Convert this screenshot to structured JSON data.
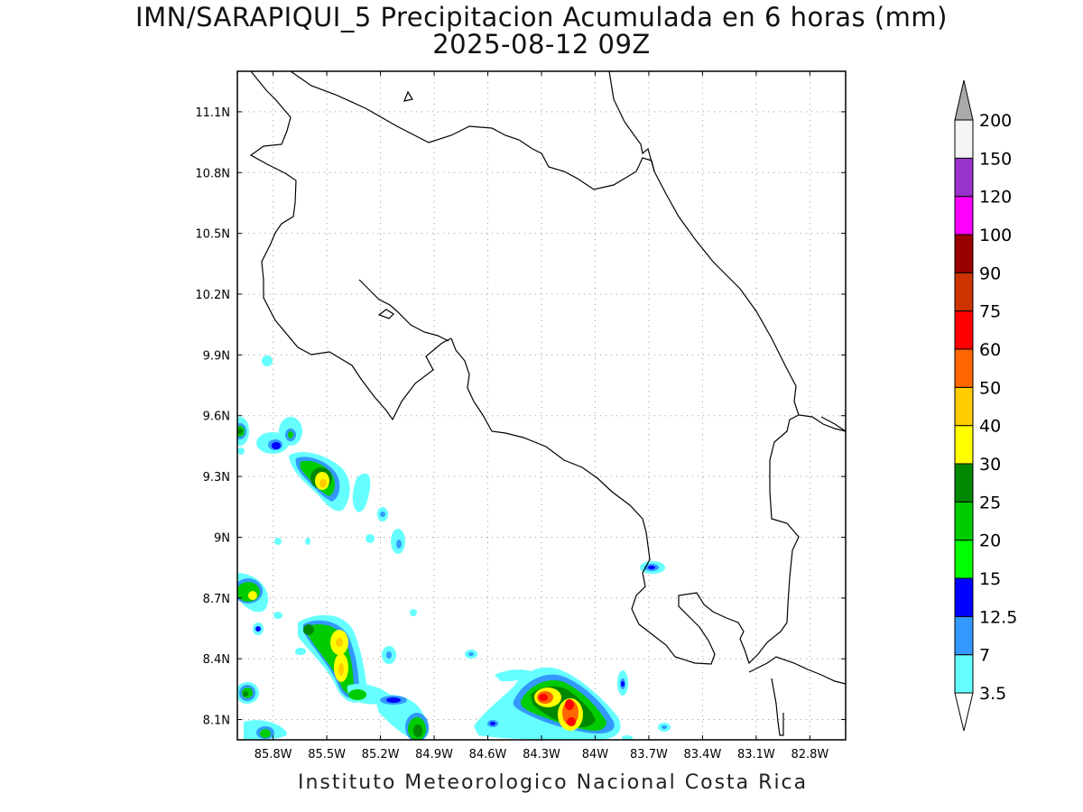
{
  "title_line1": "IMN/SARAPIQUI_5 Precipitacion Acumulada en 6 horas (mm)",
  "title_line2": "2025-08-12 09Z",
  "footer": "Instituto Meteorologico Nacional Costa Rica",
  "map": {
    "lon_range": [
      -86.0,
      -82.6
    ],
    "lat_range": [
      8.0,
      11.3
    ],
    "lon_ticks": [
      {
        "value": -85.8,
        "label": "85.8W"
      },
      {
        "value": -85.5,
        "label": "85.5W"
      },
      {
        "value": -85.2,
        "label": "85.2W"
      },
      {
        "value": -84.9,
        "label": "84.9W"
      },
      {
        "value": -84.6,
        "label": "84.6W"
      },
      {
        "value": -84.3,
        "label": "84.3W"
      },
      {
        "value": -84.0,
        "label": "84W"
      },
      {
        "value": -83.7,
        "label": "83.7W"
      },
      {
        "value": -83.4,
        "label": "83.4W"
      },
      {
        "value": -83.1,
        "label": "83.1W"
      },
      {
        "value": -82.8,
        "label": "82.8W"
      }
    ],
    "lat_ticks": [
      {
        "value": 8.1,
        "label": "8.1N"
      },
      {
        "value": 8.4,
        "label": "8.4N"
      },
      {
        "value": 8.7,
        "label": "8.7N"
      },
      {
        "value": 9.0,
        "label": "9N"
      },
      {
        "value": 9.3,
        "label": "9.3N"
      },
      {
        "value": 9.6,
        "label": "9.6N"
      },
      {
        "value": 9.9,
        "label": "9.9N"
      },
      {
        "value": 10.2,
        "label": "10.2N"
      },
      {
        "value": 10.5,
        "label": "10.5N"
      },
      {
        "value": 10.8,
        "label": "10.8N"
      },
      {
        "value": 11.1,
        "label": "11.1N"
      }
    ],
    "grid": "dotted"
  },
  "colorbar": {
    "levels": [
      "3.5",
      "7",
      "12.5",
      "15",
      "20",
      "25",
      "30",
      "40",
      "50",
      "60",
      "75",
      "90",
      "100",
      "120",
      "150",
      "200"
    ],
    "colors": [
      "#66ffff",
      "#3399ff",
      "#0000ff",
      "#00ff00",
      "#00cc00",
      "#008800",
      "#ffff00",
      "#ffcc00",
      "#ff6600",
      "#ff0000",
      "#cc3300",
      "#990000",
      "#ff00ff",
      "#9933cc",
      "#f4f4f4"
    ],
    "over_color": "#aaaaaa",
    "under_color": "#ffffff"
  }
}
